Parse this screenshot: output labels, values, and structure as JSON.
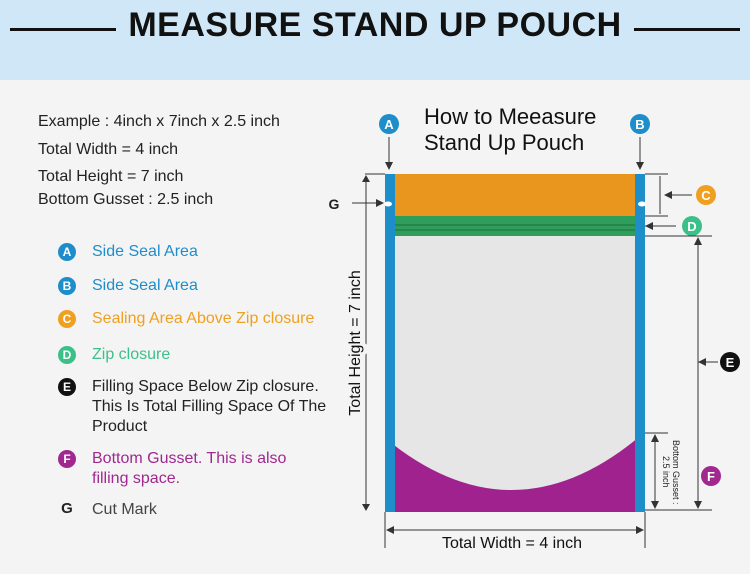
{
  "header": {
    "title": "MEASURE STAND UP POUCH"
  },
  "example": {
    "line1": "Example : 4inch x 7inch x 2.5 inch",
    "line2": "Total Width = 4 inch",
    "line3": "Total Height = 7 inch",
    "line4": "Bottom Gusset : 2.5 inch"
  },
  "legend": [
    {
      "badge": "A",
      "color": "#1e8ecb",
      "text": "Side Seal Area"
    },
    {
      "badge": "B",
      "color": "#1e8ecb",
      "text": "Side Seal Area"
    },
    {
      "badge": "C",
      "color": "#f0a020",
      "text": "Sealing Area Above Zip closure"
    },
    {
      "badge": "D",
      "color": "#3cc08a",
      "text": "Zip closure"
    },
    {
      "badge": "E",
      "color": "#111111",
      "text": "Filling Space Below Zip closure. This Is Total Filling Space Of The Product"
    },
    {
      "badge": "F",
      "color": "#a0288f",
      "text": "Bottom Gusset. This is also filling space."
    },
    {
      "badge": "G",
      "color": "#222222",
      "text": "Cut Mark"
    }
  ],
  "diagram": {
    "title_line1": "How to Meeasure",
    "title_line2": "Stand Up Pouch",
    "label_a": "A",
    "label_b": "B",
    "label_c": "C",
    "label_d": "D",
    "label_e": "E",
    "label_f": "F",
    "label_g": "G",
    "total_height": "Total Height = 7 inch",
    "total_width": "Total Width = 4 inch",
    "gusset_line1": "Bottom Gusset :",
    "gusset_line2": "2.5 inch"
  },
  "colors": {
    "side_seal": "#1e8ecb",
    "top_seal": "#e8961e",
    "zip": "#2f9e5a",
    "body": "#e6e6e6",
    "gusset": "#a0228f"
  }
}
